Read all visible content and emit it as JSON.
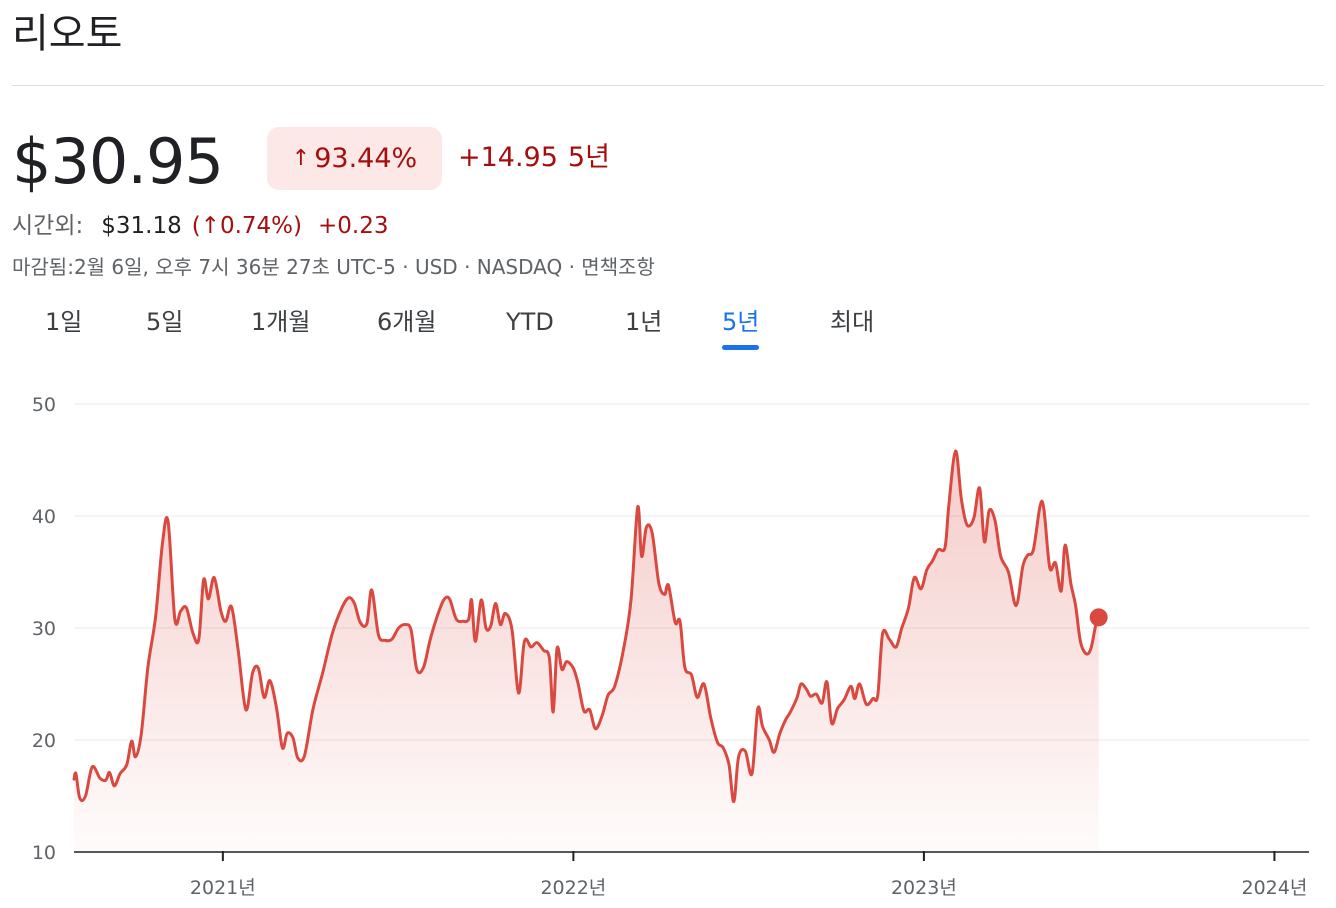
{
  "header": {
    "title": "리오토"
  },
  "quote": {
    "price": "$30.95",
    "change_pct": "93.44%",
    "change_abs": "+14.95",
    "period": "5년",
    "after_hours_label": "시간외:",
    "after_hours_price": "$31.18",
    "after_hours_pct": "(↑0.74%)",
    "after_hours_abs": "+0.23",
    "meta": "마감됨:2월 6일, 오후 7시 36분 27초 UTC-5 · USD · NASDAQ · 면책조항"
  },
  "colors": {
    "line": "#d9493f",
    "negative": "#a50e0e",
    "accent": "#1a73e8"
  },
  "icons": {
    "change_arrow": "arrow-up-icon"
  },
  "tabs": [
    {
      "label": "1일",
      "active": false
    },
    {
      "label": "5일",
      "active": false
    },
    {
      "label": "1개월",
      "active": false
    },
    {
      "label": "6개월",
      "active": false
    },
    {
      "label": "YTD",
      "active": false
    },
    {
      "label": "1년",
      "active": false
    },
    {
      "label": "5년",
      "active": true
    },
    {
      "label": "최대",
      "active": false
    }
  ],
  "chart_data": {
    "type": "area",
    "y_ticks": [
      10,
      20,
      30,
      40,
      50
    ],
    "ylim": [
      10,
      50
    ],
    "xlim": [
      "2020-07-30",
      "2024-02-06"
    ],
    "x_ticks": [
      {
        "date": "2021-01-01",
        "label": "2021년"
      },
      {
        "date": "2022-01-01",
        "label": "2022년"
      },
      {
        "date": "2023-01-01",
        "label": "2023년"
      },
      {
        "date": "2024-01-01",
        "label": "2024년"
      }
    ],
    "grid": true,
    "series": [
      {
        "points": [
          [
            "2020-07-30",
            16.5
          ],
          [
            "2020-08-01",
            17.0
          ],
          [
            "2020-08-05",
            14.8
          ],
          [
            "2020-08-11",
            15.0
          ],
          [
            "2020-08-18",
            17.6
          ],
          [
            "2020-08-26",
            16.6
          ],
          [
            "2020-09-01",
            16.4
          ],
          [
            "2020-09-05",
            17.1
          ],
          [
            "2020-09-10",
            15.9
          ],
          [
            "2020-09-16",
            17.0
          ],
          [
            "2020-09-23",
            17.8
          ],
          [
            "2020-09-28",
            19.9
          ],
          [
            "2020-10-02",
            18.5
          ],
          [
            "2020-10-08",
            20.5
          ],
          [
            "2020-10-15",
            26.5
          ],
          [
            "2020-10-23",
            31.0
          ],
          [
            "2020-10-30",
            37.5
          ],
          [
            "2020-11-05",
            39.5
          ],
          [
            "2020-11-12",
            30.8
          ],
          [
            "2020-11-18",
            31.5
          ],
          [
            "2020-11-24",
            31.8
          ],
          [
            "2020-12-01",
            29.5
          ],
          [
            "2020-12-07",
            29.0
          ],
          [
            "2020-12-12",
            34.3
          ],
          [
            "2020-12-17",
            32.6
          ],
          [
            "2020-12-23",
            34.5
          ],
          [
            "2020-12-30",
            31.5
          ],
          [
            "2021-01-04",
            30.6
          ],
          [
            "2021-01-10",
            31.9
          ],
          [
            "2021-01-17",
            28.0
          ],
          [
            "2021-01-25",
            22.7
          ],
          [
            "2021-02-01",
            26.0
          ],
          [
            "2021-02-07",
            26.4
          ],
          [
            "2021-02-13",
            23.8
          ],
          [
            "2021-02-19",
            25.3
          ],
          [
            "2021-02-26",
            22.8
          ],
          [
            "2021-03-04",
            19.3
          ],
          [
            "2021-03-09",
            20.6
          ],
          [
            "2021-03-15",
            20.2
          ],
          [
            "2021-03-20",
            18.4
          ],
          [
            "2021-03-27",
            18.6
          ],
          [
            "2021-04-05",
            22.8
          ],
          [
            "2021-04-15",
            26.0
          ],
          [
            "2021-04-25",
            29.5
          ],
          [
            "2021-05-05",
            31.8
          ],
          [
            "2021-05-12",
            32.7
          ],
          [
            "2021-05-18",
            32.2
          ],
          [
            "2021-05-24",
            30.5
          ],
          [
            "2021-05-31",
            30.4
          ],
          [
            "2021-06-05",
            33.4
          ],
          [
            "2021-06-12",
            29.4
          ],
          [
            "2021-06-19",
            28.9
          ],
          [
            "2021-06-26",
            29.0
          ],
          [
            "2021-07-03",
            30.0
          ],
          [
            "2021-07-10",
            30.3
          ],
          [
            "2021-07-16",
            29.8
          ],
          [
            "2021-07-22",
            26.3
          ],
          [
            "2021-07-29",
            26.5
          ],
          [
            "2021-08-05",
            29.0
          ],
          [
            "2021-08-12",
            31.0
          ],
          [
            "2021-08-19",
            32.5
          ],
          [
            "2021-08-25",
            32.6
          ],
          [
            "2021-09-01",
            30.8
          ],
          [
            "2021-09-08",
            30.6
          ],
          [
            "2021-09-14",
            30.8
          ],
          [
            "2021-09-17",
            32.5
          ],
          [
            "2021-09-21",
            28.8
          ],
          [
            "2021-09-27",
            32.5
          ],
          [
            "2021-10-02",
            30.0
          ],
          [
            "2021-10-07",
            30.2
          ],
          [
            "2021-10-12",
            32.2
          ],
          [
            "2021-10-17",
            30.3
          ],
          [
            "2021-10-22",
            31.3
          ],
          [
            "2021-10-29",
            29.9
          ],
          [
            "2021-11-05",
            24.2
          ],
          [
            "2021-11-11",
            28.8
          ],
          [
            "2021-11-18",
            28.3
          ],
          [
            "2021-11-24",
            28.7
          ],
          [
            "2021-12-01",
            28.0
          ],
          [
            "2021-12-07",
            27.3
          ],
          [
            "2021-12-11",
            22.5
          ],
          [
            "2021-12-15",
            28.2
          ],
          [
            "2021-12-20",
            26.3
          ],
          [
            "2021-12-25",
            27.0
          ],
          [
            "2022-01-01",
            26.4
          ],
          [
            "2022-01-06",
            25.0
          ],
          [
            "2022-01-12",
            22.6
          ],
          [
            "2022-01-18",
            22.7
          ],
          [
            "2022-01-24",
            21.0
          ],
          [
            "2022-01-31",
            22.2
          ],
          [
            "2022-02-06",
            24.0
          ],
          [
            "2022-02-13",
            24.8
          ],
          [
            "2022-02-22",
            28.0
          ],
          [
            "2022-03-02",
            32.5
          ],
          [
            "2022-03-09",
            40.8
          ],
          [
            "2022-03-13",
            36.4
          ],
          [
            "2022-03-18",
            39.0
          ],
          [
            "2022-03-24",
            38.5
          ],
          [
            "2022-03-31",
            34.0
          ],
          [
            "2022-04-06",
            33.0
          ],
          [
            "2022-04-10",
            33.8
          ],
          [
            "2022-04-17",
            30.5
          ],
          [
            "2022-04-22",
            30.6
          ],
          [
            "2022-04-27",
            26.5
          ],
          [
            "2022-05-04",
            25.8
          ],
          [
            "2022-05-10",
            23.8
          ],
          [
            "2022-05-17",
            25.0
          ],
          [
            "2022-05-24",
            22.0
          ],
          [
            "2022-05-31",
            19.8
          ],
          [
            "2022-06-06",
            19.3
          ],
          [
            "2022-06-12",
            17.8
          ],
          [
            "2022-06-17",
            14.5
          ],
          [
            "2022-06-22",
            18.5
          ],
          [
            "2022-06-29",
            19.0
          ],
          [
            "2022-07-06",
            17.0
          ],
          [
            "2022-07-12",
            22.8
          ],
          [
            "2022-07-17",
            21.2
          ],
          [
            "2022-07-24",
            20.0
          ],
          [
            "2022-07-29",
            18.9
          ],
          [
            "2022-08-04",
            20.6
          ],
          [
            "2022-08-10",
            21.8
          ],
          [
            "2022-08-15",
            22.5
          ],
          [
            "2022-08-22",
            23.8
          ],
          [
            "2022-08-26",
            25.0
          ],
          [
            "2022-09-01",
            24.5
          ],
          [
            "2022-09-05",
            23.9
          ],
          [
            "2022-09-11",
            24.1
          ],
          [
            "2022-09-17",
            23.3
          ],
          [
            "2022-09-22",
            25.2
          ],
          [
            "2022-09-27",
            21.5
          ],
          [
            "2022-10-03",
            22.8
          ],
          [
            "2022-10-10",
            23.6
          ],
          [
            "2022-10-17",
            24.8
          ],
          [
            "2022-10-21",
            23.7
          ],
          [
            "2022-10-26",
            25.0
          ],
          [
            "2022-11-02",
            23.2
          ],
          [
            "2022-11-09",
            23.7
          ],
          [
            "2022-11-14",
            24.0
          ],
          [
            "2022-11-19",
            29.5
          ],
          [
            "2022-11-26",
            29.0
          ],
          [
            "2022-12-03",
            28.3
          ],
          [
            "2022-12-09",
            30.0
          ],
          [
            "2022-12-16",
            31.8
          ],
          [
            "2022-12-22",
            34.5
          ],
          [
            "2022-12-29",
            33.5
          ],
          [
            "2023-01-04",
            35.2
          ],
          [
            "2023-01-10",
            36.0
          ],
          [
            "2023-01-16",
            37.0
          ],
          [
            "2023-01-23",
            37.2
          ],
          [
            "2023-01-27",
            41.0
          ],
          [
            "2023-02-03",
            45.8
          ],
          [
            "2023-02-09",
            41.5
          ],
          [
            "2023-02-15",
            39.2
          ],
          [
            "2023-02-22",
            39.8
          ],
          [
            "2023-02-28",
            42.5
          ],
          [
            "2023-03-05",
            37.7
          ],
          [
            "2023-03-10",
            40.5
          ],
          [
            "2023-03-16",
            39.6
          ],
          [
            "2023-03-22",
            36.4
          ],
          [
            "2023-03-30",
            35.0
          ],
          [
            "2023-04-07",
            32.0
          ],
          [
            "2023-04-14",
            35.5
          ],
          [
            "2023-04-19",
            36.5
          ],
          [
            "2023-04-25",
            37.0
          ],
          [
            "2023-05-02",
            40.9
          ],
          [
            "2023-05-06",
            40.6
          ],
          [
            "2023-05-12",
            35.4
          ],
          [
            "2023-05-18",
            35.8
          ],
          [
            "2023-05-24",
            33.3
          ],
          [
            "2023-05-28",
            37.4
          ],
          [
            "2023-06-03",
            34.0
          ],
          [
            "2023-06-08",
            32.0
          ],
          [
            "2023-06-13",
            28.8
          ],
          [
            "2023-06-19",
            27.7
          ],
          [
            "2023-06-24",
            28.2
          ],
          [
            "2023-06-29",
            30.3
          ],
          [
            "2023-07-02",
            30.95
          ]
        ]
      }
    ]
  }
}
